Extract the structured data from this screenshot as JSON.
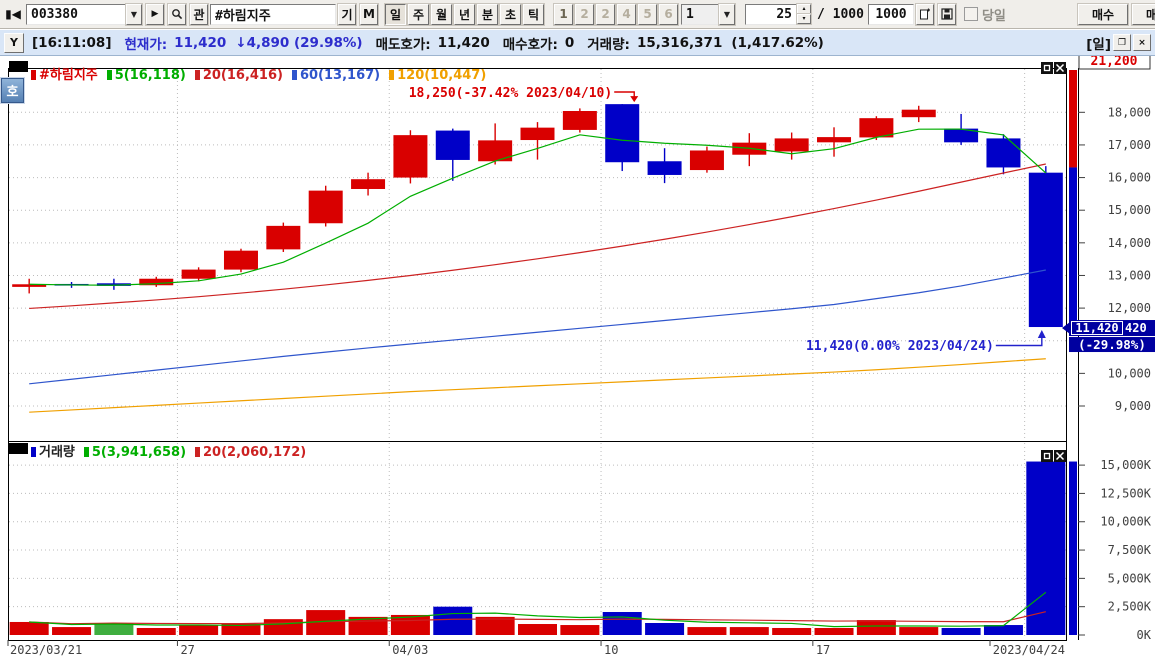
{
  "toolbar": {
    "stock_code": "003380",
    "stock_name": "#하림지주",
    "gwan_label": "관",
    "gi_label": "기",
    "m_label": "M",
    "periods": [
      "일",
      "주",
      "월",
      "년",
      "분",
      "초",
      "틱"
    ],
    "selected_period": "일",
    "layout_buttons": [
      "1",
      "2",
      "2",
      "4",
      "5",
      "6"
    ],
    "chart_select_value": "1",
    "bar_count_value": "25",
    "divider_label": "/ 1000",
    "max_bars_value": "1000",
    "dangil_label": "당일",
    "buy_label": "매수",
    "sell_label": "매도"
  },
  "statusbar": {
    "time": "[16:11:08]",
    "current_label": "현재가:",
    "current_value": "11,420",
    "change": "↓4,890 (29.98%)",
    "ask_label": "매도호가:",
    "ask_value": "11,420",
    "bid_label": "매수호가:",
    "bid_value": "0",
    "volume_label": "거래량:",
    "volume_value": "15,316,371",
    "volume_change": "(1,417.62%)",
    "period_badge": "[일]"
  },
  "side_tab_label": "호",
  "icons": {
    "collapse_left": "▮◀",
    "row_arrow": "▶",
    "combo_arrow": "▼",
    "spin_up": "▴",
    "spin_down": "▾",
    "status_tool": "Y",
    "win_restore": "❐",
    "win_close": "×"
  },
  "price_pane_legend": [
    {
      "label": "#하림지주",
      "color": "#d90000"
    },
    {
      "label": "5(16,118)",
      "color": "#00ae00"
    },
    {
      "label": "20(16,416)",
      "color": "#cc2222"
    },
    {
      "label": "60(13,167)",
      "color": "#2f55cc"
    },
    {
      "label": "120(10,447)",
      "color": "#f0a000"
    }
  ],
  "volume_pane_legend": [
    {
      "label": "거래량",
      "color": "#0000c8",
      "text_color": "#222222"
    },
    {
      "label": "5(3,941,658)",
      "color": "#00ae00",
      "text_color": "#00ae00"
    },
    {
      "label": "20(2,060,172)",
      "color": "#cc2222",
      "text_color": "#cc2222"
    }
  ],
  "colors": {
    "up": "#d90000",
    "down": "#0000c8",
    "alt_volume": "#3fae3f",
    "ma5": "#00ae00",
    "ma20": "#cc2222",
    "ma60": "#2f55cc",
    "ma120": "#f0a000",
    "vol_ma5": "#00ae00",
    "vol_ma20": "#cc2222",
    "grid": "#bcbcbc",
    "axis_text": "#404040",
    "frame": "#000000",
    "tag_bg": "#0000a0",
    "annotation_high": "#d90000",
    "annotation_last": "#2222cc"
  },
  "chart_data": {
    "type": "candlestick",
    "symbol": "#하림지주",
    "code": "003380",
    "period": "일",
    "dates": [
      "2023/03/21",
      "2023/03/22",
      "2023/03/23",
      "2023/03/24",
      "2023/03/27",
      "2023/03/28",
      "2023/03/29",
      "2023/03/30",
      "2023/03/31",
      "2023/04/03",
      "2023/04/04",
      "2023/04/05",
      "2023/04/06",
      "2023/04/07",
      "2023/04/10",
      "2023/04/11",
      "2023/04/12",
      "2023/04/13",
      "2023/04/14",
      "2023/04/17",
      "2023/04/18",
      "2023/04/19",
      "2023/04/20",
      "2023/04/21",
      "2023/04/24"
    ],
    "ohlc": [
      [
        12650,
        12900,
        12450,
        12730
      ],
      [
        12740,
        12800,
        12620,
        12690
      ],
      [
        12760,
        12900,
        12560,
        12680
      ],
      [
        12700,
        12960,
        12650,
        12900
      ],
      [
        12900,
        13250,
        12820,
        13180
      ],
      [
        13180,
        13820,
        13100,
        13760
      ],
      [
        13800,
        14620,
        13720,
        14520
      ],
      [
        14600,
        15750,
        14500,
        15600
      ],
      [
        15650,
        16150,
        15450,
        15950
      ],
      [
        16000,
        17450,
        15820,
        17300
      ],
      [
        17440,
        17500,
        15900,
        16540
      ],
      [
        16500,
        17660,
        16400,
        17140
      ],
      [
        17150,
        17700,
        16550,
        17530
      ],
      [
        17460,
        18120,
        17380,
        18040
      ],
      [
        18250,
        18250,
        16200,
        16470
      ],
      [
        16500,
        16900,
        15830,
        16080
      ],
      [
        16230,
        16950,
        16150,
        16830
      ],
      [
        16700,
        17360,
        16350,
        17070
      ],
      [
        16800,
        17380,
        16550,
        17200
      ],
      [
        17080,
        17540,
        16640,
        17240
      ],
      [
        17230,
        17880,
        17150,
        17820
      ],
      [
        17850,
        18200,
        17700,
        18080
      ],
      [
        17500,
        17950,
        17000,
        17080
      ],
      [
        17200,
        17330,
        16100,
        16310
      ],
      [
        16150,
        16350,
        11420,
        11420
      ]
    ],
    "day_high": 21200,
    "day_high_label": "21,200",
    "volumes_k": [
      1150,
      700,
      1050,
      620,
      880,
      970,
      1400,
      2200,
      1600,
      1770,
      2500,
      1600,
      970,
      880,
      2030,
      1060,
      700,
      700,
      620,
      620,
      1320,
      700,
      620,
      880,
      15316
    ],
    "volume_colors": [
      "up",
      "up",
      "alt",
      "up",
      "up",
      "up",
      "up",
      "up",
      "up",
      "up",
      "down",
      "up",
      "up",
      "up",
      "down",
      "down",
      "up",
      "up",
      "up",
      "up",
      "up",
      "up",
      "down",
      "down",
      "down"
    ],
    "ma5": [
      12730,
      12710,
      12700,
      12750,
      12836,
      13042,
      13408,
      13992,
      14602,
      15426,
      15982,
      16506,
      16892,
      17310,
      17144,
      17052,
      16990,
      16898,
      16730,
      16884,
      17232,
      17482,
      17484,
      17306,
      16142
    ],
    "ma20": [
      11990,
      12070,
      12160,
      12250,
      12350,
      12460,
      12580,
      12710,
      12850,
      13000,
      13160,
      13330,
      13510,
      13700,
      13900,
      14110,
      14330,
      14560,
      14800,
      15050,
      15310,
      15580,
      15860,
      16140,
      16416
    ],
    "ma60": [
      9680,
      9820,
      9960,
      10100,
      10240,
      10380,
      10520,
      10650,
      10780,
      10900,
      11020,
      11140,
      11260,
      11380,
      11500,
      11620,
      11740,
      11860,
      11980,
      12110,
      12290,
      12470,
      12680,
      12920,
      13167
    ],
    "ma120": [
      8810,
      8880,
      8950,
      9020,
      9090,
      9160,
      9230,
      9300,
      9370,
      9440,
      9500,
      9560,
      9620,
      9680,
      9740,
      9800,
      9860,
      9920,
      9980,
      10040,
      10110,
      10190,
      10270,
      10360,
      10447
    ],
    "vol_ma5": [
      1150,
      925,
      967,
      880,
      880,
      844,
      984,
      1214,
      1410,
      1588,
      1894,
      1934,
      1688,
      1544,
      1596,
      1308,
      1128,
      1074,
      1022,
      740,
      792,
      792,
      776,
      828,
      3767
    ],
    "vol_ma20": [
      1150,
      1000,
      1050,
      1020,
      1010,
      1010,
      1060,
      1180,
      1230,
      1280,
      1390,
      1410,
      1380,
      1350,
      1400,
      1380,
      1340,
      1310,
      1270,
      1230,
      1240,
      1210,
      1180,
      1170,
      2060
    ],
    "price_ticks": [
      {
        "v": 18000,
        "label": "18,000"
      },
      {
        "v": 17000,
        "label": "17,000"
      },
      {
        "v": 16000,
        "label": "16,000"
      },
      {
        "v": 15000,
        "label": "15,000"
      },
      {
        "v": 14000,
        "label": "14,000"
      },
      {
        "v": 13000,
        "label": "13,000"
      },
      {
        "v": 12000,
        "label": "12,000"
      },
      {
        "v": 10000,
        "label": "10,000"
      },
      {
        "v": 9000,
        "label": "9,000"
      }
    ],
    "price_gridlines": [
      18000,
      17000,
      16000,
      15000,
      14000,
      13000,
      12000,
      11000,
      10000,
      9000
    ],
    "volume_ticks": [
      {
        "v": 15000,
        "label": "15,000K"
      },
      {
        "v": 12500,
        "label": "12,500K"
      },
      {
        "v": 10000,
        "label": "10,000K"
      },
      {
        "v": 7500,
        "label": "7,500K"
      },
      {
        "v": 5000,
        "label": "5,000K"
      },
      {
        "v": 2500,
        "label": "2,500K"
      },
      {
        "v": 0,
        "label": "0K"
      }
    ],
    "x_ticks": [
      {
        "i": 0,
        "label": "2023/03/21"
      },
      {
        "i": 4,
        "label": "27"
      },
      {
        "i": 9,
        "label": "04/03"
      },
      {
        "i": 14,
        "label": "10"
      },
      {
        "i": 19,
        "label": "17"
      },
      {
        "i": 24,
        "label": "2023/04/24"
      }
    ],
    "annotations": {
      "high": {
        "text": "18,250(-37.42% 2023/04/10)",
        "bar": 14,
        "price": 18250
      },
      "last": {
        "text": "11,420(0.00% 2023/04/24)",
        "bar": 24,
        "price": 11420
      }
    },
    "price_tag": {
      "main": "11,420",
      "extra": "420",
      "percent": "(-29.98%)"
    },
    "gutter_bar": {
      "high": 21200,
      "open": 16310,
      "low": 11420
    },
    "current_volume_k": 15316,
    "price_y_window": [
      7930,
      19360
    ],
    "volume_y_window": [
      0,
      17500
    ]
  }
}
